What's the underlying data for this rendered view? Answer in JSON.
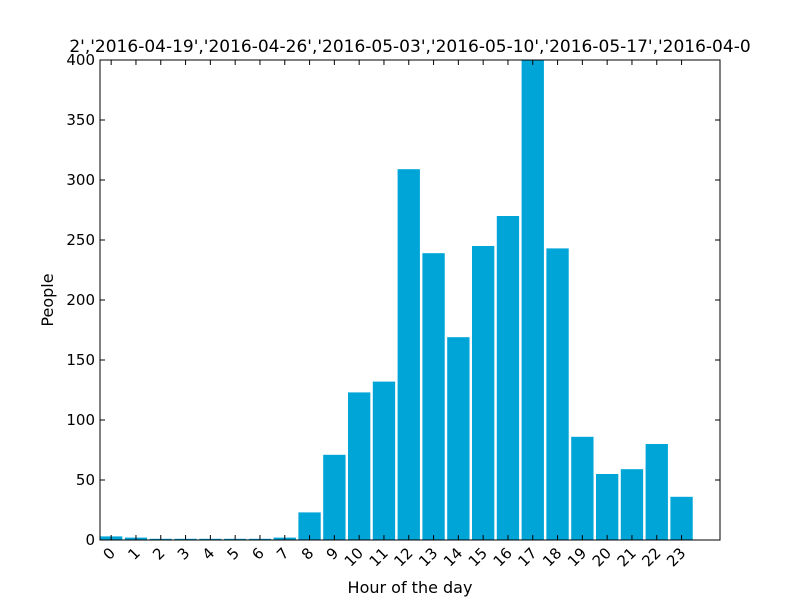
{
  "chart_data": {
    "type": "bar",
    "title": "2','2016-04-19','2016-04-26','2016-05-03','2016-05-10','2016-05-17','2016-04-0",
    "xlabel": "Hour of the day",
    "ylabel": "People",
    "categories": [
      "0",
      "1",
      "2",
      "3",
      "4",
      "5",
      "6",
      "7",
      "8",
      "9",
      "10",
      "11",
      "12",
      "13",
      "14",
      "15",
      "16",
      "17",
      "18",
      "19",
      "20",
      "21",
      "22",
      "23"
    ],
    "values": [
      3,
      2,
      1,
      1,
      1,
      1,
      1,
      2,
      23,
      71,
      123,
      132,
      309,
      239,
      169,
      245,
      270,
      400,
      243,
      86,
      55,
      59,
      80,
      36
    ],
    "ylim": [
      0,
      400
    ],
    "xlim": [
      0,
      25
    ],
    "yticks": [
      0,
      50,
      100,
      150,
      200,
      250,
      300,
      350,
      400
    ],
    "grid": false,
    "bar_color": "#00A5D8"
  }
}
